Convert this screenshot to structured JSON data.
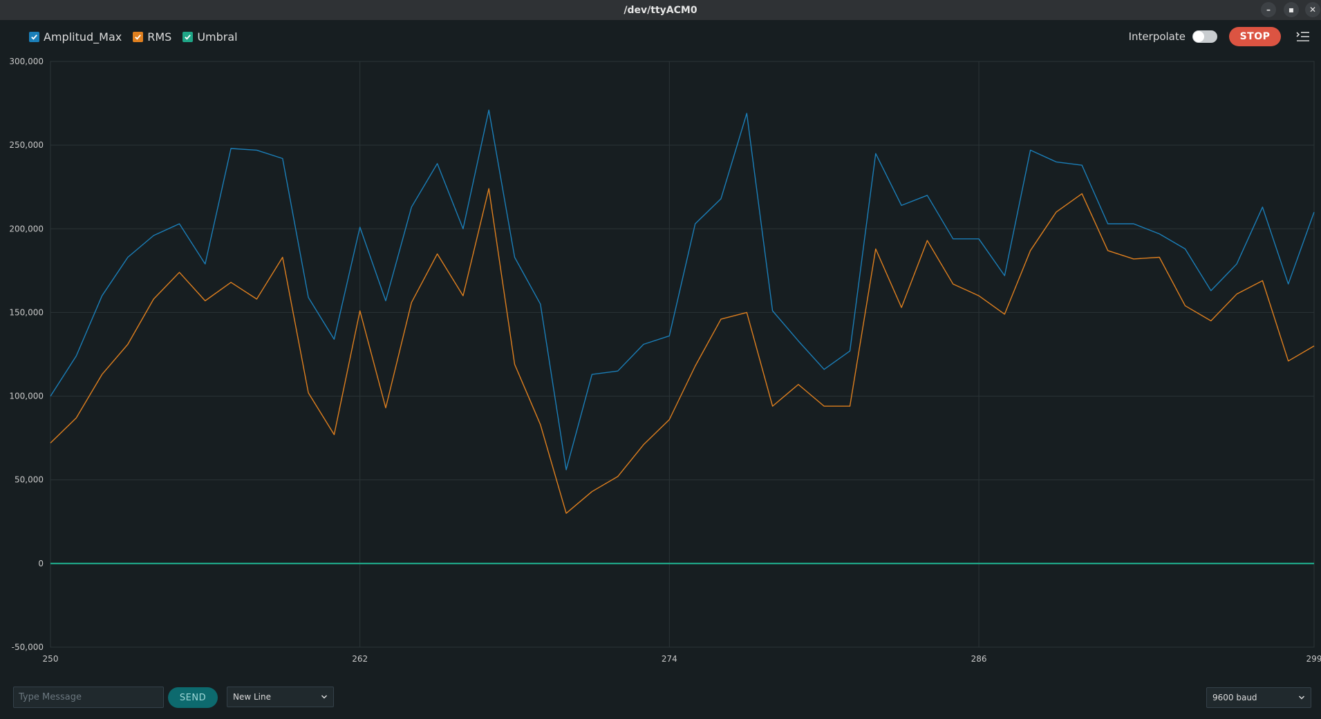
{
  "window": {
    "title": "/dev/ttyACM0",
    "minimize_glyph": "–",
    "maximize_glyph": "▪",
    "close_glyph": "✕"
  },
  "toolbar": {
    "interpolate_label": "Interpolate",
    "interpolate_on": false,
    "stop_label": "STOP",
    "menu_icon": "settings-menu-icon"
  },
  "bottom": {
    "message_placeholder": "Type Message",
    "send_label": "SEND",
    "line_ending": "New Line",
    "baud_rate": "9600 baud"
  },
  "colors": {
    "Amplitud_Max": "#1b7fb9",
    "RMS": "#e0801f",
    "Umbral": "#1fa687",
    "background": "#171e21",
    "grid": "#2b3437"
  },
  "chart_data": {
    "type": "line",
    "title": "",
    "xlabel": "",
    "ylabel": "",
    "xlim": [
      250,
      299
    ],
    "ylim": [
      -50000,
      300000
    ],
    "x_ticks": [
      250,
      262,
      274,
      286,
      299
    ],
    "y_ticks": [
      -50000,
      0,
      50000,
      100000,
      150000,
      200000,
      250000,
      300000
    ],
    "y_tick_labels": [
      "-50,000",
      "0",
      "50,000",
      "100,000",
      "150,000",
      "200,000",
      "250,000",
      "300,000"
    ],
    "grid": true,
    "legend": "top-left",
    "x": [
      250,
      251,
      252,
      253,
      254,
      255,
      256,
      257,
      258,
      259,
      260,
      261,
      262,
      263,
      264,
      265,
      266,
      267,
      268,
      269,
      270,
      271,
      272,
      273,
      274,
      275,
      276,
      277,
      278,
      279,
      280,
      281,
      282,
      283,
      284,
      285,
      286,
      287,
      288,
      289,
      290,
      291,
      292,
      293,
      294,
      295,
      296,
      297,
      298,
      299
    ],
    "series": [
      {
        "name": "Amplitud_Max",
        "values": [
          100000,
          124000,
          160000,
          183000,
          196000,
          203000,
          179000,
          248000,
          247000,
          242000,
          159000,
          134000,
          201000,
          157000,
          213000,
          239000,
          200000,
          271000,
          183000,
          155000,
          56000,
          113000,
          115000,
          131000,
          136000,
          203000,
          218000,
          269000,
          151000,
          133000,
          116000,
          127000,
          245000,
          214000,
          220000,
          194000,
          194000,
          172000,
          247000,
          240000,
          238000,
          203000,
          203000,
          197000,
          188000,
          163000,
          179000,
          213000,
          167000,
          210000
        ]
      },
      {
        "name": "RMS",
        "values": [
          72000,
          87000,
          113000,
          131000,
          158000,
          174000,
          157000,
          168000,
          158000,
          183000,
          102000,
          77000,
          151000,
          93000,
          156000,
          185000,
          160000,
          224000,
          119000,
          83000,
          30000,
          43000,
          52000,
          71000,
          86000,
          118000,
          146000,
          150000,
          94000,
          107000,
          94000,
          94000,
          188000,
          153000,
          193000,
          167000,
          160000,
          149000,
          187000,
          210000,
          221000,
          187000,
          182000,
          183000,
          154000,
          145000,
          161000,
          169000,
          121000,
          130000
        ]
      },
      {
        "name": "Umbral",
        "values": [
          0,
          0,
          0,
          0,
          0,
          0,
          0,
          0,
          0,
          0,
          0,
          0,
          0,
          0,
          0,
          0,
          0,
          0,
          0,
          0,
          0,
          0,
          0,
          0,
          0,
          0,
          0,
          0,
          0,
          0,
          0,
          0,
          0,
          0,
          0,
          0,
          0,
          0,
          0,
          0,
          0,
          0,
          0,
          0,
          0,
          0,
          0,
          0,
          0,
          0
        ]
      }
    ]
  }
}
